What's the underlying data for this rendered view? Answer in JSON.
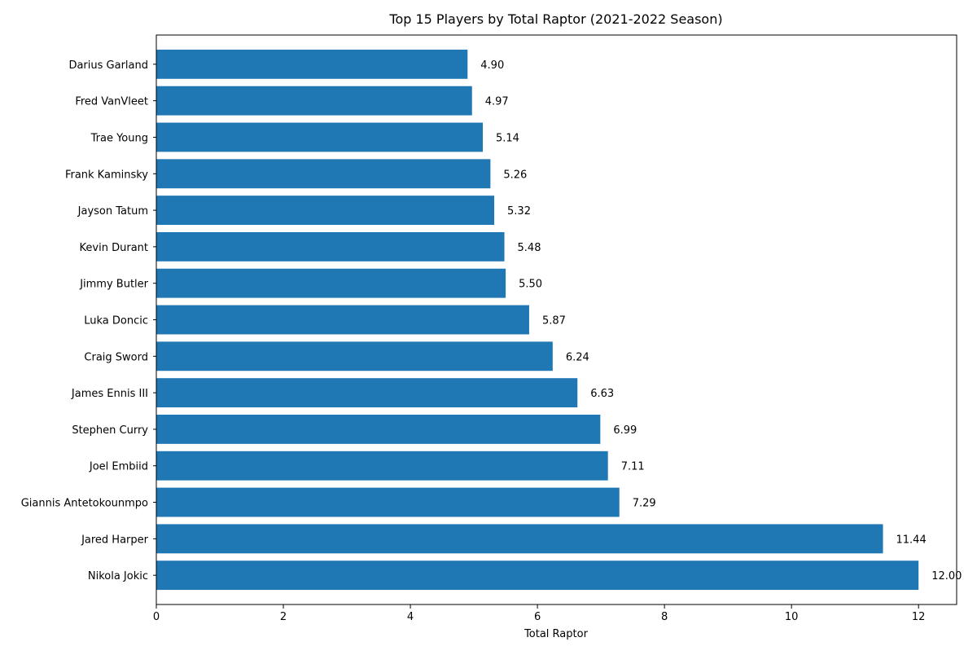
{
  "chart_data": {
    "type": "bar",
    "orientation": "horizontal",
    "title": "Top 15 Players by Total Raptor (2021-2022 Season)",
    "xlabel": "Total Raptor",
    "ylabel": "",
    "categories": [
      "Nikola Jokic",
      "Jared Harper",
      "Giannis Antetokounmpo",
      "Joel Embiid",
      "Stephen Curry",
      "James Ennis III",
      "Craig Sword",
      "Luka Doncic",
      "Jimmy Butler",
      "Kevin Durant",
      "Jayson Tatum",
      "Frank Kaminsky",
      "Trae Young",
      "Fred VanVleet",
      "Darius Garland"
    ],
    "values": [
      12.0,
      11.44,
      7.29,
      7.11,
      6.99,
      6.63,
      6.24,
      5.87,
      5.5,
      5.48,
      5.32,
      5.26,
      5.14,
      4.97,
      4.9
    ],
    "data_labels": [
      "12.00",
      "11.44",
      "7.29",
      "7.11",
      "6.99",
      "6.63",
      "6.24",
      "5.87",
      "5.50",
      "5.48",
      "5.32",
      "5.26",
      "5.14",
      "4.97",
      "4.90"
    ],
    "xlim": [
      0,
      12.6
    ],
    "xticks": [
      0,
      2,
      4,
      6,
      8,
      10,
      12
    ],
    "xtick_labels": [
      "0",
      "2",
      "4",
      "6",
      "8",
      "10",
      "12"
    ],
    "grid": false,
    "legend": "none",
    "bar_color": "#1f77b4"
  }
}
